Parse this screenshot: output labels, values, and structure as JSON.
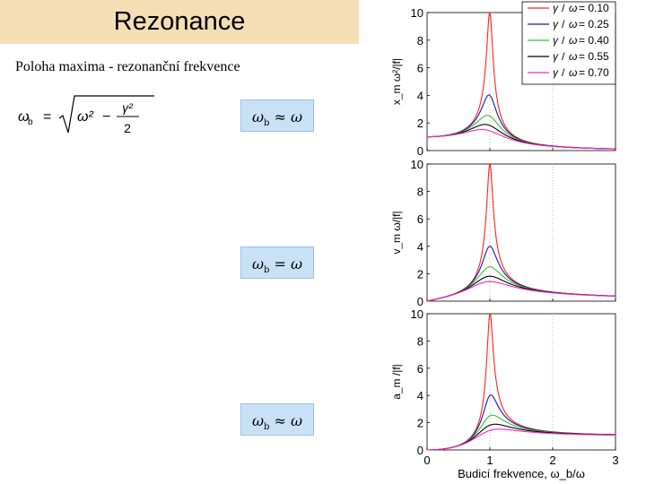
{
  "slide": {
    "title": "Rezonance",
    "subtitle": "Poloha maxima - rezonanční frekvence",
    "main_formula": {
      "lhs": "ω",
      "lhs_sub": "b",
      "eq": "=",
      "radicand_a": "ω²",
      "minus": "−",
      "numerator": "γ²",
      "denominator": "2"
    },
    "boxes": [
      {
        "lhs": "ω",
        "sub": "b",
        "rel": "≈",
        "rhs": "ω"
      },
      {
        "lhs": "ω",
        "sub": "b",
        "rel": "=",
        "rhs": "ω"
      },
      {
        "lhs": "ω",
        "sub": "b",
        "rel": "≈",
        "rhs": "ω"
      }
    ]
  },
  "colors": {
    "title_bg": "#f5deb3",
    "box_bg": "#c9e1f7",
    "series": [
      "#ff2020",
      "#1a1aa8",
      "#30c030",
      "#000000",
      "#ff20c8"
    ]
  },
  "chart_data": [
    {
      "type": "line",
      "name": "displacement",
      "ylabel": "x_m ω²/|f|",
      "y_ticks": [
        "0",
        "2",
        "4",
        "6",
        "8",
        "10"
      ],
      "x_ticks": [],
      "xlabel": "",
      "xlim": [
        0,
        3
      ],
      "ylim": [
        0,
        10
      ],
      "kind": "x",
      "legend": [
        {
          "gamma": "γ",
          "slash": "/",
          "omega": "ω",
          "value": "= 0.10"
        },
        {
          "gamma": "γ",
          "slash": "/",
          "omega": "ω",
          "value": "= 0.25"
        },
        {
          "gamma": "γ",
          "slash": "/",
          "omega": "ω",
          "value": "= 0.40"
        },
        {
          "gamma": "γ",
          "slash": "/",
          "omega": "ω",
          "value": "= 0.55"
        },
        {
          "gamma": "γ",
          "slash": "/",
          "omega": "ω",
          "value": "= 0.70"
        }
      ],
      "gammas": [
        0.1,
        0.25,
        0.4,
        0.55,
        0.7
      ]
    },
    {
      "type": "line",
      "name": "velocity",
      "ylabel": "v_m ω/|f|",
      "y_ticks": [
        "0",
        "2",
        "4",
        "6",
        "8",
        "10"
      ],
      "x_ticks": [],
      "xlabel": "",
      "xlim": [
        0,
        3
      ],
      "ylim": [
        0,
        10
      ],
      "kind": "v",
      "gammas": [
        0.1,
        0.25,
        0.4,
        0.55,
        0.7
      ]
    },
    {
      "type": "line",
      "name": "acceleration",
      "ylabel": "a_m /|f|",
      "y_ticks": [
        "0",
        "2",
        "4",
        "6",
        "8",
        "10"
      ],
      "x_ticks": [
        "0",
        "1",
        "2",
        "3"
      ],
      "xlabel": "Budicí frekvence, ω_b/ω",
      "xlim": [
        0,
        3
      ],
      "ylim": [
        0,
        10
      ],
      "kind": "a",
      "gammas": [
        0.1,
        0.25,
        0.4,
        0.55,
        0.7
      ]
    }
  ]
}
